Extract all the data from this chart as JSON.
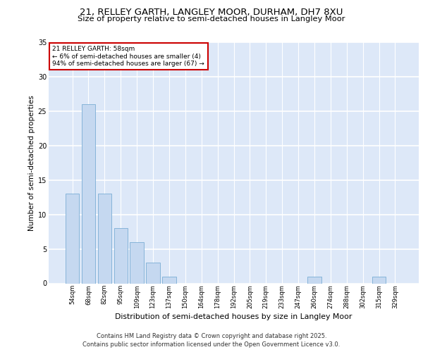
{
  "title_line1": "21, RELLEY GARTH, LANGLEY MOOR, DURHAM, DH7 8XU",
  "title_line2": "Size of property relative to semi-detached houses in Langley Moor",
  "xlabel": "Distribution of semi-detached houses by size in Langley Moor",
  "ylabel": "Number of semi-detached properties",
  "annotation_title": "21 RELLEY GARTH: 58sqm",
  "annotation_line2": "← 6% of semi-detached houses are smaller (4)",
  "annotation_line3": "94% of semi-detached houses are larger (67) →",
  "footer_line1": "Contains HM Land Registry data © Crown copyright and database right 2025.",
  "footer_line2": "Contains public sector information licensed under the Open Government Licence v3.0.",
  "categories": [
    "54sqm",
    "68sqm",
    "82sqm",
    "95sqm",
    "109sqm",
    "123sqm",
    "137sqm",
    "150sqm",
    "164sqm",
    "178sqm",
    "192sqm",
    "205sqm",
    "219sqm",
    "233sqm",
    "247sqm",
    "260sqm",
    "274sqm",
    "288sqm",
    "302sqm",
    "315sqm",
    "329sqm"
  ],
  "values": [
    13,
    26,
    13,
    8,
    6,
    3,
    1,
    0,
    0,
    0,
    0,
    0,
    0,
    0,
    0,
    1,
    0,
    0,
    0,
    1,
    0
  ],
  "bar_color": "#c5d8f0",
  "bar_edge_color": "#7aadd4",
  "annotation_box_color": "#cc0000",
  "plot_bg_color": "#dde8f8",
  "grid_color": "#ffffff",
  "ylim": [
    0,
    35
  ],
  "yticks": [
    0,
    5,
    10,
    15,
    20,
    25,
    30,
    35
  ]
}
